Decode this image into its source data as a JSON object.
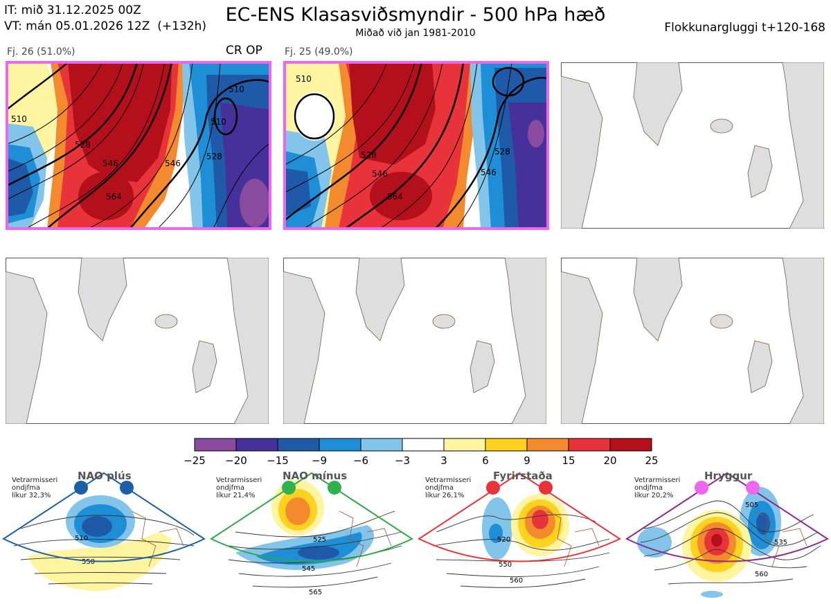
{
  "header": {
    "it": "IT: mið 31.12.2025 00Z",
    "vt": "VT: mán 05.01.2026 12Z  (+132h)",
    "title": "EC-ENS Klasasviðsmyndir - 500 hPa hæð",
    "subtitle": "Miðað við jan 1981-2010",
    "window": "Flokkunargluggi t+120-168"
  },
  "panels": [
    {
      "label": "Fj. 26 (51.0%)",
      "tag": "CR OP",
      "filled": true,
      "border": "#ee66ee",
      "contours": [
        "510",
        "546",
        "528",
        "546",
        "564",
        "510",
        "528",
        "510"
      ]
    },
    {
      "label": "Fj. 25 (49.0%)",
      "tag": "",
      "filled": true,
      "border": "#ee66ee",
      "contours": [
        "510",
        "528",
        "546",
        "564",
        "528",
        "546"
      ]
    },
    {
      "label": "",
      "tag": "",
      "filled": false
    },
    {
      "label": "",
      "tag": "",
      "filled": false
    },
    {
      "label": "",
      "tag": "",
      "filled": false
    },
    {
      "label": "",
      "tag": "",
      "filled": false
    }
  ],
  "colorbar": {
    "ticks": [
      "−25",
      "−20",
      "−15",
      "−9",
      "−6",
      "−3",
      "3",
      "6",
      "9",
      "15",
      "20",
      "25"
    ],
    "colors": [
      "#8a4a9e",
      "#46309a",
      "#1f5aa8",
      "#1e8fd6",
      "#82c4ea",
      "#ffffff",
      "#fff4a0",
      "#ffd21f",
      "#f38a2e",
      "#e8333a",
      "#b3101c"
    ]
  },
  "regimes": [
    {
      "name": "NAO plús",
      "note": "Vetrarmisseri\nondjfma\nlíkur 32,3%",
      "color": "#1b5fa8",
      "dot": "#1b5fa8",
      "labels": [
        "510",
        "550"
      ]
    },
    {
      "name": "NAO mínus",
      "note": "Vetrarmisseri\nondjfma\nlíkur 21,4%",
      "color": "#2fa84a",
      "dot": "#2fb24d",
      "labels": [
        "525",
        "545",
        "565"
      ]
    },
    {
      "name": "Fyrirstaða",
      "note": "Vetrarmisseri\nondjfma\nlíkur 26,1%",
      "color": "#e8333a",
      "dot": "#e8333a",
      "labels": [
        "520",
        "550",
        "560"
      ]
    },
    {
      "name": "Hryggur",
      "note": "Vetrarmisseri\nondjfma\nlíkur 20,2%",
      "color": "#8b2a8e",
      "dot": "#ee66ee",
      "labels": [
        "505",
        "535",
        "560"
      ]
    }
  ]
}
